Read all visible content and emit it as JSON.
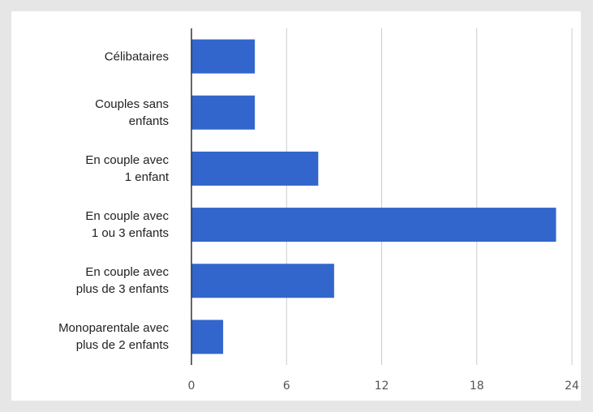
{
  "chart_data": {
    "type": "bar",
    "orientation": "horizontal",
    "categories": [
      "Célibataires",
      "Couples sans\nenfants",
      "En couple avec\n1 enfant",
      "En couple avec\n1 ou 3 enfants",
      "En couple avec\nplus de 3 enfants",
      "Monoparentale avec\nplus de 2 enfants"
    ],
    "values": [
      4,
      4,
      8,
      23,
      9,
      2
    ],
    "color": "#3366cc",
    "xlim": [
      0,
      24
    ],
    "xticks": [
      0,
      6,
      12,
      18,
      24
    ],
    "grid": true
  }
}
